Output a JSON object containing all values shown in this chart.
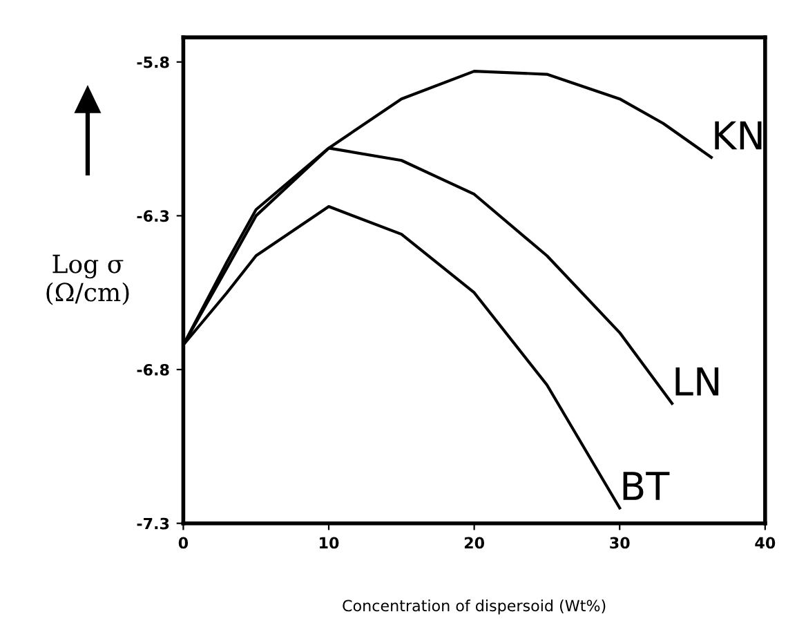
{
  "chart_data": {
    "type": "line",
    "xlabel": "Concentration of dispersoid (Wt%)",
    "ylabel": "Log σ\n(Ω/cm)",
    "xlim": [
      0,
      40
    ],
    "xticks": [
      0,
      10,
      20,
      30,
      40
    ],
    "ylim": [
      -7.3,
      -5.72
    ],
    "yticks": [
      -7.3,
      -6.8,
      -6.3,
      -5.8
    ],
    "grid": false,
    "legend": false,
    "series": [
      {
        "name": "KN",
        "color": "#000000",
        "x": [
          0,
          3,
          5,
          10,
          15,
          20,
          25,
          30,
          33,
          36.3
        ],
        "values": [
          -6.72,
          -6.45,
          -6.28,
          -6.08,
          -5.92,
          -5.83,
          -5.84,
          -5.92,
          -6.0,
          -6.11
        ]
      },
      {
        "name": "LN",
        "color": "#000000",
        "x": [
          0,
          3,
          5,
          10,
          15,
          20,
          25,
          30,
          33.6
        ],
        "values": [
          -6.72,
          -6.47,
          -6.3,
          -6.08,
          -6.12,
          -6.23,
          -6.43,
          -6.68,
          -6.91
        ]
      },
      {
        "name": "BT",
        "color": "#000000",
        "x": [
          0,
          3,
          5,
          10,
          15,
          20,
          25,
          30
        ],
        "values": [
          -6.72,
          -6.55,
          -6.43,
          -6.27,
          -6.36,
          -6.55,
          -6.85,
          -7.25
        ]
      }
    ]
  }
}
